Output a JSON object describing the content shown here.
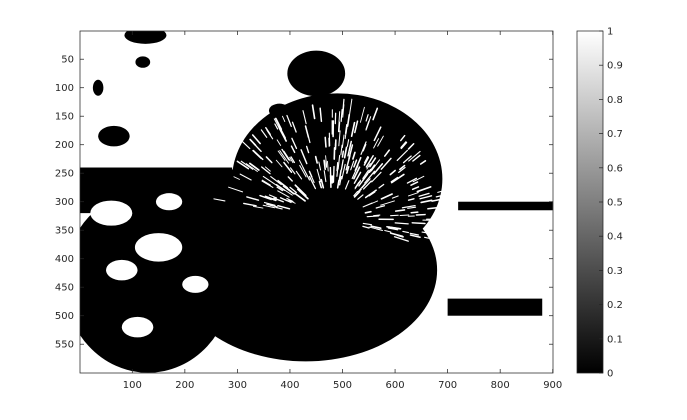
{
  "chart_data": {
    "type": "heatmap",
    "title": "",
    "xlabel": "",
    "ylabel": "",
    "colormap": "gray",
    "xlim": [
      0.5,
      900.5
    ],
    "ylim": [
      0.5,
      600.5
    ],
    "y_reversed": true,
    "x_ticks": [
      100,
      200,
      300,
      400,
      500,
      600,
      700,
      800,
      900
    ],
    "y_ticks": [
      50,
      100,
      150,
      200,
      250,
      300,
      350,
      400,
      450,
      500,
      550
    ],
    "colorbar": {
      "range": [
        0,
        1
      ],
      "ticks": [
        0,
        0.1,
        0.2,
        0.3,
        0.4,
        0.5,
        0.6,
        0.7,
        0.8,
        0.9,
        1
      ],
      "tick_labels": [
        "0",
        "0.1",
        "0.2",
        "0.3",
        "0.4",
        "0.5",
        "0.6",
        "0.7",
        "0.8",
        "0.9",
        "1"
      ]
    },
    "background_value": 1,
    "foreground_value": 0,
    "content": "binary thresholded photograph of a porcupine (black foreground on white)",
    "black_regions": [
      {
        "name": "porcupine-body",
        "type": "ellipse",
        "cx": 430,
        "cy": 420,
        "rx": 250,
        "ry": 160
      },
      {
        "name": "porcupine-quills",
        "type": "ellipse",
        "cx": 490,
        "cy": 260,
        "rx": 200,
        "ry": 150
      },
      {
        "name": "porcupine-upper",
        "type": "ellipse",
        "cx": 440,
        "cy": 330,
        "rx": 200,
        "ry": 130
      },
      {
        "name": "dark-blob-top",
        "type": "ellipse",
        "cx": 450,
        "cy": 75,
        "rx": 55,
        "ry": 40
      },
      {
        "name": "shadow-bar",
        "type": "rect",
        "x0": 720,
        "x1": 900,
        "y0": 300,
        "y1": 315
      },
      {
        "name": "shadow-bar-lower",
        "type": "rect",
        "x0": 700,
        "x1": 880,
        "y0": 470,
        "y1": 500
      },
      {
        "name": "left-shadow-mass",
        "type": "ellipse",
        "cx": 130,
        "cy": 440,
        "rx": 160,
        "ry": 160
      },
      {
        "name": "small-blob-a",
        "type": "ellipse",
        "cx": 65,
        "cy": 185,
        "rx": 30,
        "ry": 18
      },
      {
        "name": "small-blob-b",
        "type": "ellipse",
        "cx": 125,
        "cy": 8,
        "rx": 40,
        "ry": 15
      },
      {
        "name": "small-blob-c",
        "type": "ellipse",
        "cx": 120,
        "cy": 55,
        "rx": 14,
        "ry": 10
      },
      {
        "name": "small-blob-d",
        "type": "ellipse",
        "cx": 35,
        "cy": 100,
        "rx": 10,
        "ry": 14
      },
      {
        "name": "small-blob-e",
        "type": "ellipse",
        "cx": 380,
        "cy": 140,
        "rx": 20,
        "ry": 12
      },
      {
        "name": "left-band",
        "type": "rect",
        "x0": 0,
        "x1": 290,
        "y0": 240,
        "y1": 320
      }
    ],
    "white_regions": [
      {
        "name": "white-patch-left-1",
        "type": "ellipse",
        "cx": 60,
        "cy": 320,
        "rx": 40,
        "ry": 22
      },
      {
        "name": "white-patch-left-2",
        "type": "ellipse",
        "cx": 150,
        "cy": 380,
        "rx": 45,
        "ry": 25
      },
      {
        "name": "white-patch-left-3",
        "type": "ellipse",
        "cx": 80,
        "cy": 420,
        "rx": 30,
        "ry": 18
      },
      {
        "name": "white-patch-left-4",
        "type": "ellipse",
        "cx": 220,
        "cy": 445,
        "rx": 25,
        "ry": 15
      },
      {
        "name": "white-patch-left-5",
        "type": "ellipse",
        "cx": 170,
        "cy": 300,
        "rx": 25,
        "ry": 15
      },
      {
        "name": "white-patch-left-6",
        "type": "ellipse",
        "cx": 110,
        "cy": 520,
        "rx": 30,
        "ry": 18
      },
      {
        "name": "ground-right",
        "type": "ellipse",
        "cx": 780,
        "cy": 580,
        "rx": 200,
        "ry": 70
      }
    ]
  }
}
